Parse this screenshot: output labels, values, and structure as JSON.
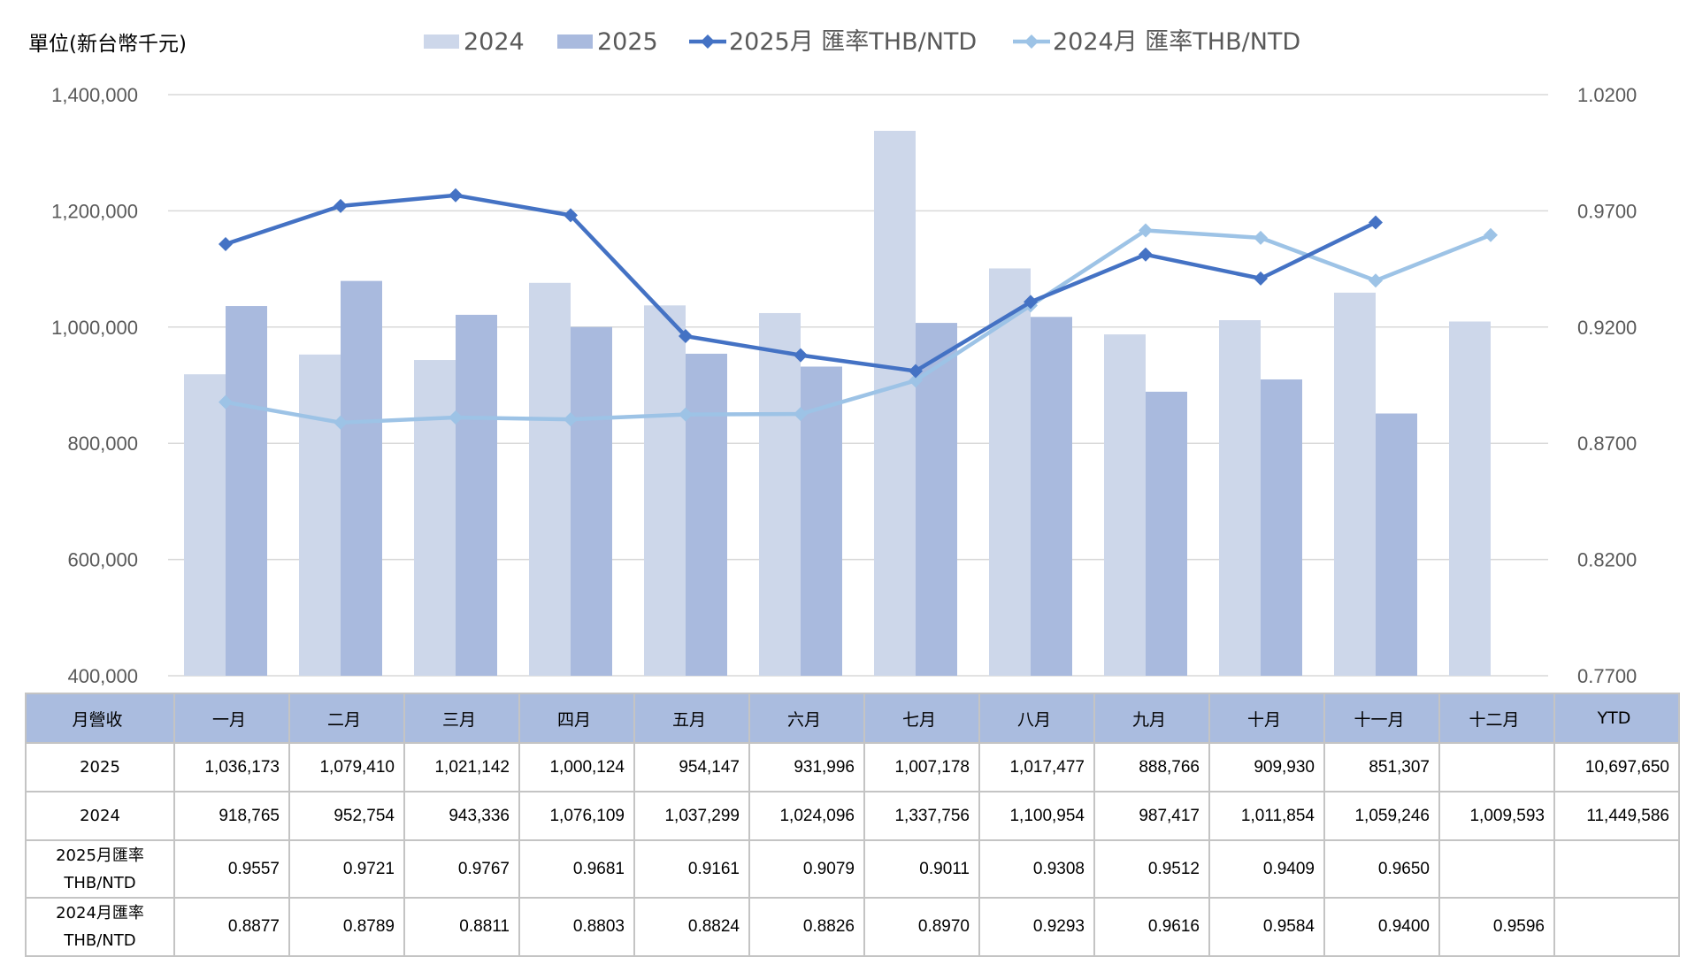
{
  "chart_data": {
    "type": "bar+line",
    "unit_label": "單位(新台幣千元)",
    "categories": [
      "一月",
      "二月",
      "三月",
      "四月",
      "五月",
      "六月",
      "七月",
      "八月",
      "九月",
      "十月",
      "十一月",
      "十二月"
    ],
    "bar_series": [
      {
        "name": "2024",
        "color": "#cdd7ea",
        "values": [
          918765,
          952754,
          943336,
          1076109,
          1037299,
          1024096,
          1337756,
          1100954,
          987417,
          1011854,
          1059246,
          1009593
        ]
      },
      {
        "name": "2025",
        "color": "#a9bade",
        "values": [
          1036173,
          1079410,
          1021142,
          1000124,
          954147,
          931996,
          1007178,
          1017477,
          888766,
          909930,
          851307,
          null
        ]
      }
    ],
    "line_series": [
      {
        "name": "2025月 匯率THB/NTD",
        "color": "#4472c4",
        "values": [
          0.9557,
          0.9721,
          0.9767,
          0.9681,
          0.9161,
          0.9079,
          0.9011,
          0.9308,
          0.9512,
          0.9409,
          0.965,
          null
        ]
      },
      {
        "name": "2024月 匯率THB/NTD",
        "color": "#9dc3e6",
        "values": [
          0.8877,
          0.8789,
          0.8811,
          0.8803,
          0.8824,
          0.8826,
          0.897,
          0.9293,
          0.9616,
          0.9584,
          0.94,
          0.9596
        ]
      }
    ],
    "y_left": {
      "min": 400000,
      "max": 1400000,
      "ticks": [
        "400,000",
        "600,000",
        "800,000",
        "1,000,000",
        "1,200,000",
        "1,400,000"
      ]
    },
    "y_right": {
      "min": 0.77,
      "max": 1.02,
      "ticks": [
        "0.7700",
        "0.8200",
        "0.8700",
        "0.9200",
        "0.9700",
        "1.0200"
      ]
    },
    "grid": true,
    "legend_position": "top"
  },
  "table": {
    "header": [
      "月營收",
      "一月",
      "二月",
      "三月",
      "四月",
      "五月",
      "六月",
      "七月",
      "八月",
      "九月",
      "十月",
      "十一月",
      "十二月",
      "YTD"
    ],
    "rows": [
      {
        "label": [
          "2025"
        ],
        "cells": [
          "1,036,173",
          "1,079,410",
          "1,021,142",
          "1,000,124",
          "954,147",
          "931,996",
          "1,007,178",
          "1,017,477",
          "888,766",
          "909,930",
          "851,307",
          "",
          "10,697,650"
        ]
      },
      {
        "label": [
          "2024"
        ],
        "cells": [
          "918,765",
          "952,754",
          "943,336",
          "1,076,109",
          "1,037,299",
          "1,024,096",
          "1,337,756",
          "1,100,954",
          "987,417",
          "1,011,854",
          "1,059,246",
          "1,009,593",
          "11,449,586"
        ]
      },
      {
        "label": [
          "2025月匯率",
          "THB/NTD"
        ],
        "cells": [
          "0.9557",
          "0.9721",
          "0.9767",
          "0.9681",
          "0.9161",
          "0.9079",
          "0.9011",
          "0.9308",
          "0.9512",
          "0.9409",
          "0.9650",
          "",
          ""
        ]
      },
      {
        "label": [
          "2024月匯率",
          "THB/NTD"
        ],
        "cells": [
          "0.8877",
          "0.8789",
          "0.8811",
          "0.8803",
          "0.8824",
          "0.8826",
          "0.8970",
          "0.9293",
          "0.9616",
          "0.9584",
          "0.9400",
          "0.9596",
          ""
        ]
      }
    ]
  }
}
